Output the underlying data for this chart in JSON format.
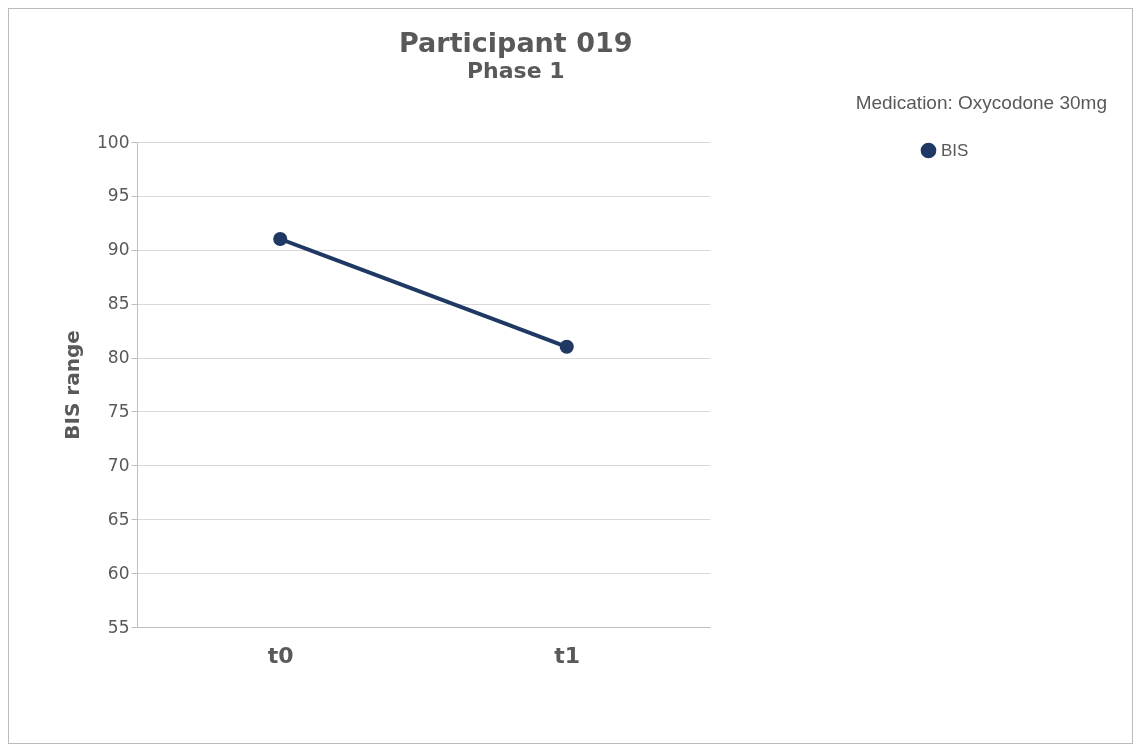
{
  "chart_data": {
    "type": "line",
    "title": "Participant 019",
    "subtitle": "Phase 1",
    "ylabel": "BIS range",
    "annotations": [
      "Medication: Oxycodone 30mg"
    ],
    "categories": [
      "t0",
      "t1"
    ],
    "series": [
      {
        "name": "BIS",
        "color": "#203864",
        "values": [
          91,
          81
        ]
      }
    ],
    "ylim": [
      55,
      100
    ],
    "yticks": [
      55,
      60,
      65,
      70,
      75,
      80,
      85,
      90,
      95,
      100
    ],
    "grid": "y",
    "legend": "right",
    "marker": "circle",
    "line_style": "solid"
  }
}
